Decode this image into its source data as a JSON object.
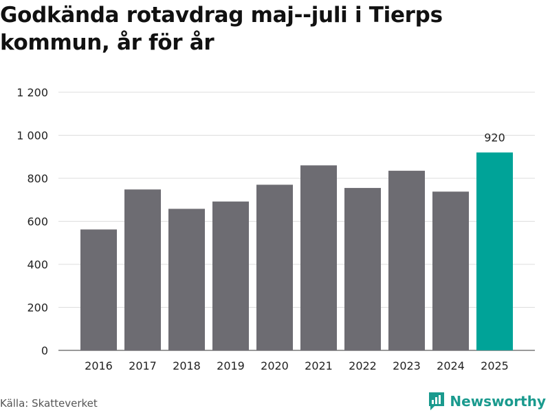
{
  "title": "Godkända rotavdrag maj--juli i Tierps kommun, år för år",
  "footer": {
    "source": "Källa: Skatteverket",
    "brand": "Newsworthy",
    "brand_icon": "newsworthy-logo-icon"
  },
  "colors": {
    "bar": "#6d6c72",
    "highlight": "#00a398",
    "grid": "#dddddd",
    "brand": "#1a9a8e"
  },
  "chart_data": {
    "type": "bar",
    "title": "Godkända rotavdrag maj--juli i Tierps kommun, år för år",
    "xlabel": "",
    "ylabel": "",
    "categories": [
      "2016",
      "2017",
      "2018",
      "2019",
      "2020",
      "2021",
      "2022",
      "2023",
      "2024",
      "2025"
    ],
    "values": [
      562,
      748,
      658,
      692,
      770,
      860,
      755,
      835,
      738,
      920
    ],
    "ylim": [
      0,
      1200
    ],
    "yticks": [
      0,
      200,
      400,
      600,
      800,
      1000,
      1200
    ],
    "ytick_labels": [
      "0",
      "200",
      "400",
      "600",
      "800",
      "1 000",
      "1 200"
    ],
    "highlight_index": 9,
    "data_labels": [
      {
        "index": 9,
        "text": "920"
      }
    ],
    "grid": true,
    "legend": "none"
  }
}
